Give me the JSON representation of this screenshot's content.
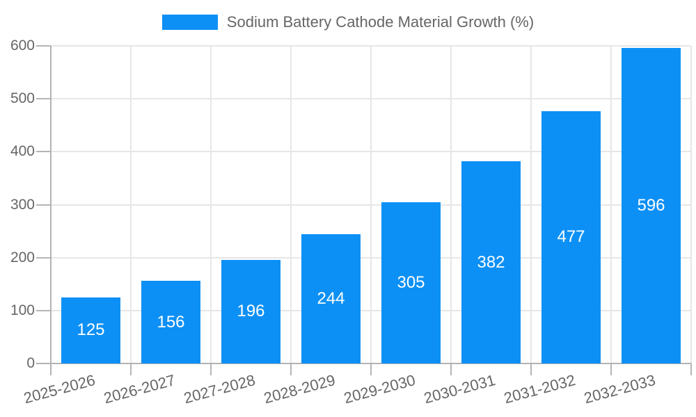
{
  "chart_data": {
    "type": "bar",
    "title": "Sodium Battery Cathode Material Growth (%)",
    "categories": [
      "2025-2026",
      "2026-2027",
      "2027-2028",
      "2028-2029",
      "2029-2030",
      "2030-2031",
      "2031-2032",
      "2032-2033"
    ],
    "values": [
      125,
      156,
      196,
      244,
      305,
      382,
      477,
      596
    ],
    "series": [
      {
        "name": "Sodium Battery Cathode Material Growth (%)",
        "values": [
          125,
          156,
          196,
          244,
          305,
          382,
          477,
          596
        ]
      }
    ],
    "xlabel": "",
    "ylabel": "",
    "ylim": [
      0,
      600
    ],
    "yticks": [
      0,
      100,
      200,
      300,
      400,
      500,
      600
    ],
    "grid": true,
    "legend_position": "top-center",
    "x_label_rotation_deg": -15,
    "value_labels": "centered-inside-bars",
    "colors": {
      "bar": "#0d90f5",
      "bar_value_text": "#ffffff",
      "axis_text": "#666666",
      "axis_line": "#b3b3b3",
      "tick_mark": "#b5b5b5",
      "gridline": "#e6e6e6",
      "background": "#ffffff"
    }
  }
}
